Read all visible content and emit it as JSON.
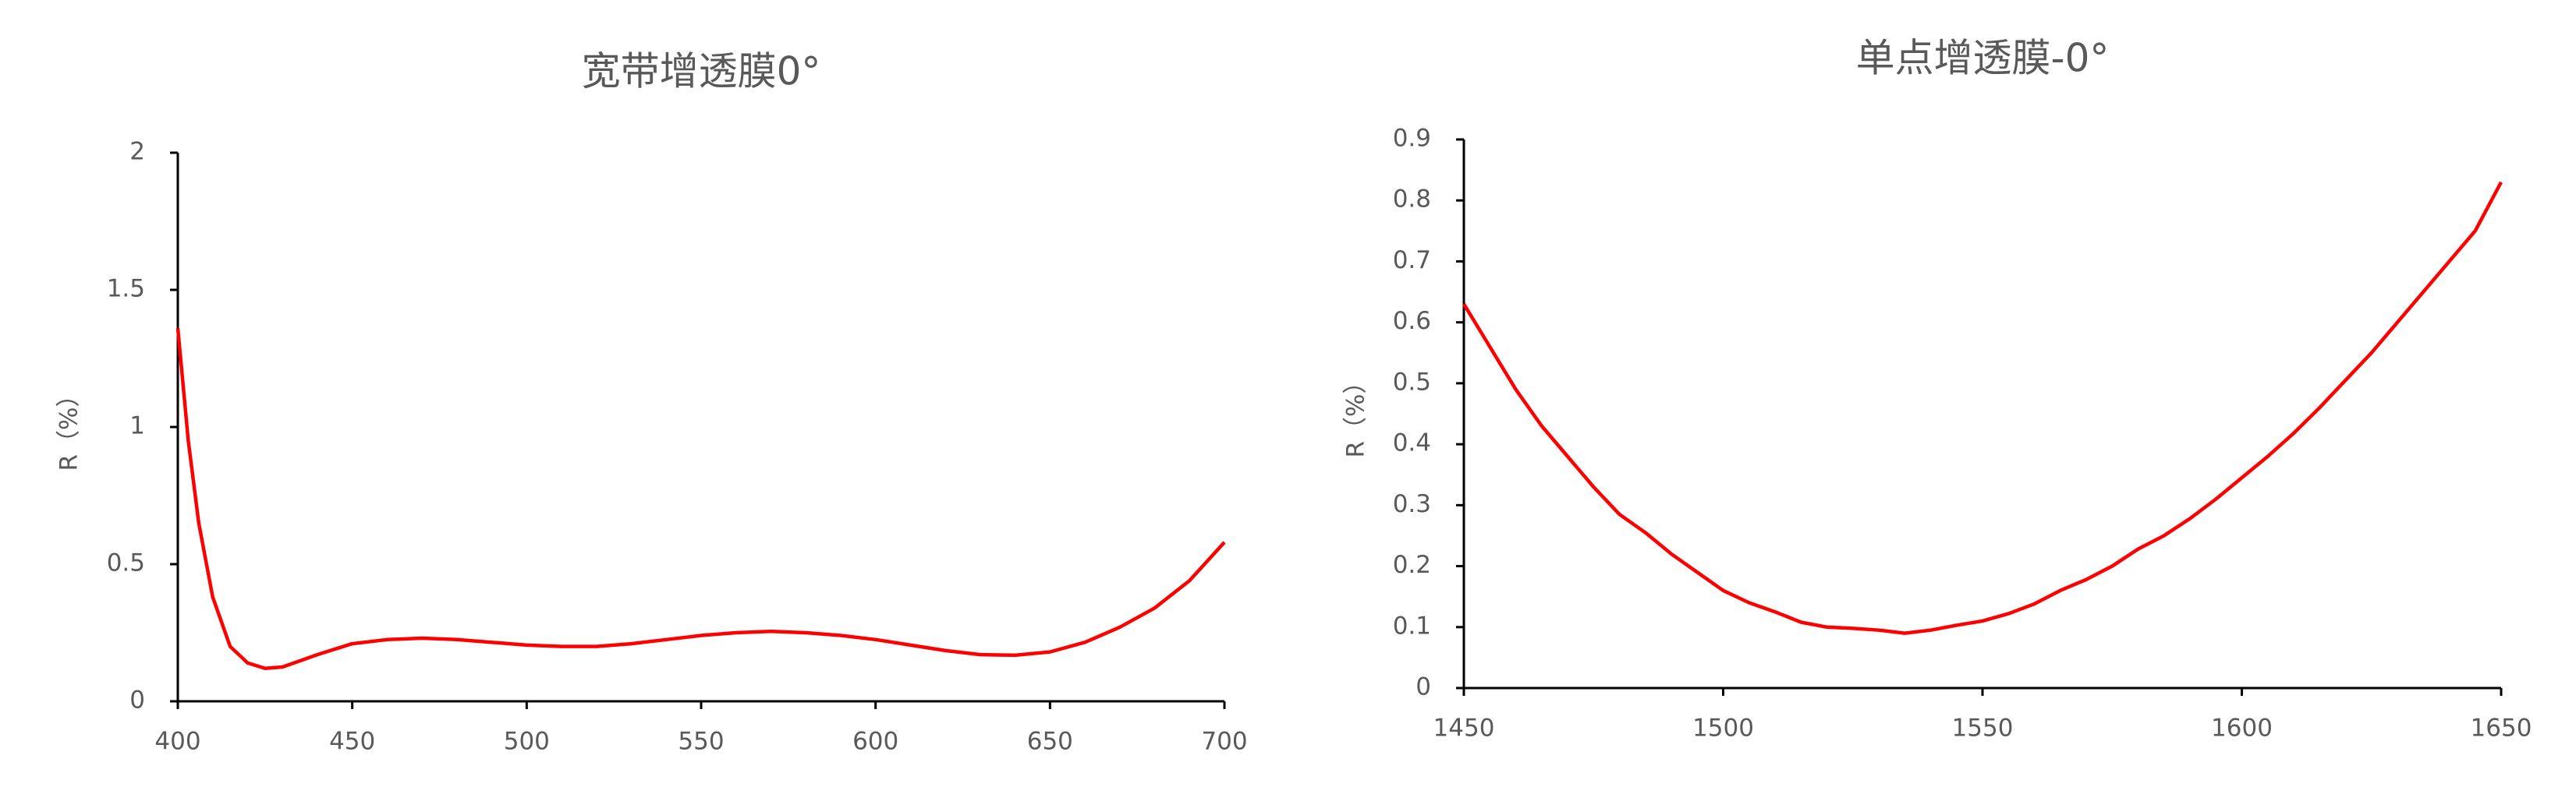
{
  "chart_data": [
    {
      "type": "line",
      "title": "宽带增透膜0°",
      "y_label": "R（%）",
      "x": [
        400,
        403,
        406,
        410,
        415,
        420,
        425,
        430,
        440,
        450,
        460,
        470,
        480,
        490,
        500,
        510,
        520,
        530,
        540,
        550,
        560,
        570,
        580,
        590,
        600,
        610,
        620,
        630,
        640,
        650,
        660,
        670,
        680,
        690,
        700
      ],
      "series": [
        {
          "color": "#ff0000",
          "values": [
            1.36,
            0.95,
            0.65,
            0.38,
            0.2,
            0.14,
            0.12,
            0.125,
            0.17,
            0.21,
            0.225,
            0.23,
            0.225,
            0.215,
            0.205,
            0.2,
            0.2,
            0.21,
            0.225,
            0.24,
            0.25,
            0.255,
            0.25,
            0.24,
            0.225,
            0.205,
            0.185,
            0.17,
            0.168,
            0.18,
            0.215,
            0.27,
            0.34,
            0.44,
            0.58
          ]
        }
      ],
      "xlim": [
        400,
        700
      ],
      "xticks": [
        400,
        450,
        500,
        550,
        600,
        650,
        700
      ],
      "ylim": [
        0,
        2
      ],
      "yticks": [
        0,
        0.5,
        1,
        1.5,
        2
      ]
    },
    {
      "type": "line",
      "title": "单点增透膜-0°",
      "y_label": "R（%）",
      "x": [
        1450,
        1455,
        1460,
        1465,
        1470,
        1475,
        1480,
        1485,
        1490,
        1495,
        1500,
        1505,
        1510,
        1515,
        1520,
        1525,
        1530,
        1535,
        1540,
        1545,
        1550,
        1555,
        1560,
        1565,
        1570,
        1575,
        1580,
        1585,
        1590,
        1595,
        1600,
        1605,
        1610,
        1615,
        1620,
        1625,
        1630,
        1635,
        1640,
        1645,
        1650
      ],
      "series": [
        {
          "color": "#ff0000",
          "values": [
            0.63,
            0.56,
            0.49,
            0.43,
            0.38,
            0.33,
            0.285,
            0.255,
            0.22,
            0.19,
            0.16,
            0.14,
            0.125,
            0.108,
            0.1,
            0.098,
            0.095,
            0.09,
            0.095,
            0.103,
            0.11,
            0.122,
            0.138,
            0.16,
            0.178,
            0.2,
            0.228,
            0.25,
            0.278,
            0.31,
            0.345,
            0.38,
            0.418,
            0.46,
            0.505,
            0.55,
            0.6,
            0.65,
            0.7,
            0.75,
            0.83
          ]
        }
      ],
      "xlim": [
        1450,
        1650
      ],
      "xticks": [
        1450,
        1500,
        1550,
        1600,
        1650
      ],
      "ylim": [
        0,
        0.9
      ],
      "yticks": [
        0,
        0.1,
        0.2,
        0.3,
        0.4,
        0.5,
        0.6,
        0.7,
        0.8,
        0.9
      ]
    }
  ]
}
